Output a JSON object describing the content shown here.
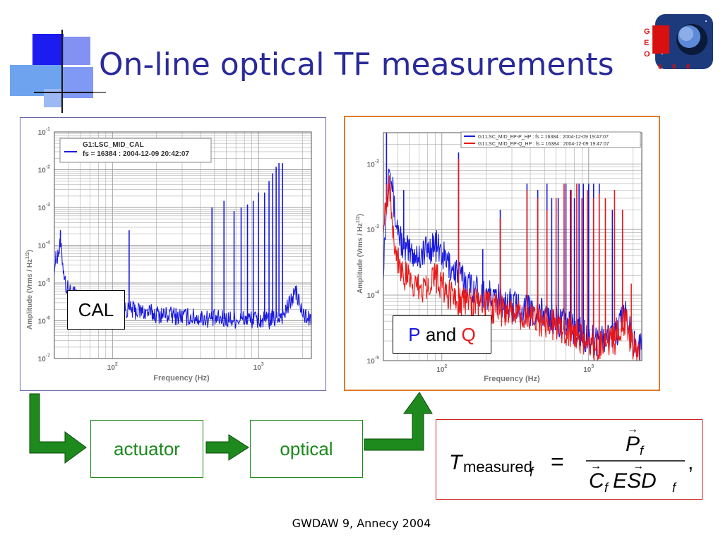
{
  "slide": {
    "title": "On-line optical TF measurements",
    "footer": "GWDAW 9, Annecy 2004"
  },
  "logo": {
    "letters": [
      "G",
      "E",
      "O",
      "6",
      "0",
      "0"
    ]
  },
  "callouts": {
    "cal": "CAL",
    "p": "P",
    "and": "and",
    "q": "Q"
  },
  "flow": {
    "actuator": "actuator",
    "optical": "optical"
  },
  "formula": {
    "text": "T_measured_f = P_f / (C_f ESD_f)"
  },
  "colors": {
    "title": "#2a2a9a",
    "series_blue": "#1a1adc",
    "series_red": "#e81818",
    "flow_green": "#1a8a1a",
    "arrow_green": "#1e8a1e"
  },
  "chart_data": [
    {
      "type": "line",
      "log_x": true,
      "log_y": true,
      "xlabel": "Frequency (Hz)",
      "ylabel": "Amplitude (Vrms / Hz^1/2)",
      "ylabel_parts": [
        "Amplitude (Vrms / Hz",
        "1/2",
        ")"
      ],
      "xlim": [
        40,
        2300
      ],
      "ylim": [
        1e-07,
        0.1
      ],
      "x_ticks": [
        {
          "value": 100,
          "base": "10",
          "exp": "2"
        },
        {
          "value": 1000,
          "base": "10",
          "exp": "3"
        }
      ],
      "y_ticks": [
        {
          "value": 0.1,
          "base": "10",
          "exp": "-1"
        },
        {
          "value": 0.01,
          "base": "10",
          "exp": "-2"
        },
        {
          "value": 0.001,
          "base": "10",
          "exp": "-3"
        },
        {
          "value": 0.0001,
          "base": "10",
          "exp": "-4"
        },
        {
          "value": 1e-05,
          "base": "10",
          "exp": "-5"
        },
        {
          "value": 1e-06,
          "base": "10",
          "exp": "-6"
        },
        {
          "value": 1e-07,
          "base": "10",
          "exp": "-7"
        }
      ],
      "grid": true,
      "legend_position": "top-left",
      "series": [
        {
          "name": "G1:LSC_MID_CAL",
          "name_line2": "fs = 16384 : 2004-12-09 20:42:07",
          "color": "#1a1adc",
          "baseline": [
            [
              40,
              3e-05
            ],
            [
              44,
              0.0001
            ],
            [
              48,
              8e-06
            ],
            [
              60,
              3e-06
            ],
            [
              80,
              2e-06
            ],
            [
              100,
              2.5e-06
            ],
            [
              130,
              2e-06
            ],
            [
              200,
              1.5e-06
            ],
            [
              300,
              1.3e-06
            ],
            [
              500,
              1.1e-06
            ],
            [
              800,
              1.1e-06
            ],
            [
              1200,
              1e-06
            ],
            [
              1500,
              1.5e-06
            ],
            [
              1800,
              6e-06
            ],
            [
              2000,
              1.5e-06
            ],
            [
              2300,
              1e-06
            ]
          ],
          "peaks": [
            [
              44,
              0.00025
            ],
            [
              55,
              8e-06
            ],
            [
              130,
              0.00025
            ],
            [
              480,
              0.001
            ],
            [
              580,
              0.0015
            ],
            [
              680,
              0.0008
            ],
            [
              760,
              0.001
            ],
            [
              840,
              0.0012
            ],
            [
              920,
              0.0015
            ],
            [
              1000,
              0.0025
            ],
            [
              1100,
              0.0025
            ],
            [
              1180,
              0.005
            ],
            [
              1250,
              0.008
            ],
            [
              1320,
              0.012
            ],
            [
              1380,
              0.015
            ],
            [
              1460,
              0.015
            ]
          ]
        }
      ]
    },
    {
      "type": "line",
      "log_x": true,
      "log_y": true,
      "xlabel": "Frequency (Hz)",
      "ylabel": "Amplitude (Vrms / Hz^1/2)",
      "ylabel_parts": [
        "Amplitude (Vrms / Hz",
        "1/2",
        ")"
      ],
      "xlim": [
        40,
        2300
      ],
      "ylim": [
        1e-05,
        0.03
      ],
      "x_ticks": [
        {
          "value": 100,
          "base": "10",
          "exp": "2"
        },
        {
          "value": 1000,
          "base": "10",
          "exp": "3"
        }
      ],
      "y_ticks": [
        {
          "value": 0.01,
          "base": "10",
          "exp": "-2"
        },
        {
          "value": 0.001,
          "base": "10",
          "exp": "-3"
        },
        {
          "value": 0.0001,
          "base": "10",
          "exp": "-4"
        },
        {
          "value": 1e-05,
          "base": "10",
          "exp": "-5"
        }
      ],
      "grid": true,
      "legend_position": "top-right",
      "series": [
        {
          "name": "G1:LSC_MID_EP-P_HP : fs = 16384 : 2004-12-09 19:47:07",
          "color": "#1a1adc",
          "baseline": [
            [
              40,
              0.0003
            ],
            [
              44,
              0.015
            ],
            [
              48,
              0.0015
            ],
            [
              55,
              0.0005
            ],
            [
              70,
              0.0004
            ],
            [
              90,
              0.0006
            ],
            [
              110,
              0.0003
            ],
            [
              150,
              0.00015
            ],
            [
              200,
              0.0001
            ],
            [
              300,
              7e-05
            ],
            [
              500,
              5e-05
            ],
            [
              800,
              3e-05
            ],
            [
              1100,
              2e-05
            ],
            [
              1500,
              2.5e-05
            ],
            [
              1800,
              5e-05
            ],
            [
              2000,
              2e-05
            ],
            [
              2300,
              1.5e-05
            ]
          ],
          "peaks": [
            [
              42,
              0.03
            ],
            [
              55,
              0.004
            ],
            [
              130,
              0.015
            ],
            [
              190,
              0.0005
            ],
            [
              250,
              0.002
            ],
            [
              380,
              0.005
            ],
            [
              450,
              0.004
            ],
            [
              520,
              0.005
            ],
            [
              560,
              0.003
            ],
            [
              620,
              0.003
            ],
            [
              700,
              0.005
            ],
            [
              750,
              0.004
            ],
            [
              800,
              0.003
            ],
            [
              860,
              0.005
            ],
            [
              920,
              0.005
            ],
            [
              1000,
              0.005
            ],
            [
              1080,
              0.005
            ],
            [
              1180,
              0.005
            ],
            [
              1450,
              0.002
            ]
          ]
        },
        {
          "name": "G1:LSC_MID_EP-Q_HP : fs = 16384 : 2004-12-09 19:47:07",
          "color": "#e81818",
          "baseline": [
            [
              40,
              0.0015
            ],
            [
              44,
              0.005
            ],
            [
              48,
              0.0005
            ],
            [
              55,
              0.0002
            ],
            [
              70,
              0.00012
            ],
            [
              90,
              0.0002
            ],
            [
              110,
              0.0001
            ],
            [
              150,
              8e-05
            ],
            [
              200,
              7e-05
            ],
            [
              300,
              5e-05
            ],
            [
              500,
              4e-05
            ],
            [
              800,
              2.5e-05
            ],
            [
              1100,
              1.5e-05
            ],
            [
              1500,
              2e-05
            ],
            [
              1800,
              4e-05
            ],
            [
              2000,
              1.5e-05
            ],
            [
              2300,
              1e-05
            ]
          ],
          "peaks": [
            [
              42,
              0.005
            ],
            [
              130,
              0.012
            ],
            [
              250,
              0.0015
            ],
            [
              380,
              0.004
            ],
            [
              450,
              0.003
            ],
            [
              520,
              0.002
            ],
            [
              600,
              0.003
            ],
            [
              680,
              0.005
            ],
            [
              760,
              0.004
            ],
            [
              830,
              0.005
            ],
            [
              900,
              0.003
            ],
            [
              980,
              0.004
            ],
            [
              1080,
              0.003
            ],
            [
              1180,
              0.0035
            ],
            [
              1300,
              0.003
            ],
            [
              1500,
              0.004
            ],
            [
              1700,
              0.002
            ],
            [
              1950,
              0.00015
            ]
          ]
        }
      ]
    }
  ]
}
